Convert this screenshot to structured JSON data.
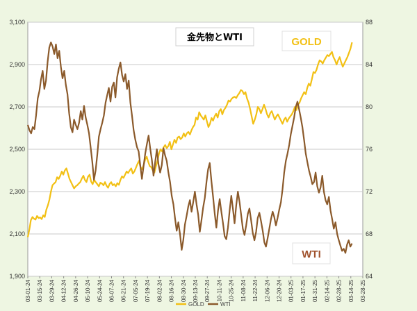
{
  "chart_data": {
    "type": "line",
    "title": "金先物とWTI",
    "colors": {
      "gold": "#f2c014",
      "wti": "#8b5a2b",
      "plot_bg": "#ffffff",
      "grid": "#c8c8c8"
    },
    "y_left": {
      "min": 1900,
      "max": 3100,
      "ticks": [
        1900,
        2100,
        2300,
        2500,
        2700,
        2900,
        3100
      ],
      "tick_labels": [
        "1,900",
        "2,100",
        "2,300",
        "2,500",
        "2,700",
        "2,900",
        "3,100"
      ]
    },
    "y_right": {
      "min": 64,
      "max": 88,
      "ticks": [
        64,
        68,
        72,
        76,
        80,
        84,
        88
      ],
      "tick_labels": [
        "64",
        "68",
        "72",
        "76",
        "80",
        "84",
        "88"
      ]
    },
    "x_labels": [
      "03-01-24",
      "03-15-24",
      "03-29-24",
      "04-12-24",
      "04-26-24",
      "05-10-24",
      "05-24-24",
      "06-07-24",
      "06-21-24",
      "07-05-24",
      "07-19-24",
      "08-02-24",
      "08-16-24",
      "08-30-24",
      "09-13-24",
      "09-27-24",
      "10-11-24",
      "10-25-24",
      "11-08-24",
      "11-22-24",
      "12-06-24",
      "12-20-24",
      "01-03-25",
      "01-17-25",
      "01-31-25",
      "02-14-25",
      "02-28-25",
      "03-14-25",
      "03-28-25"
    ],
    "legend": [
      "GOLD",
      "WTI"
    ],
    "annotations": {
      "gold": "GOLD",
      "wti": "WTI"
    },
    "series": [
      {
        "name": "GOLD",
        "axis": "left",
        "values": [
          2085,
          2120,
          2165,
          2180,
          2172,
          2168,
          2185,
          2175,
          2178,
          2170,
          2188,
          2180,
          2215,
          2235,
          2262,
          2300,
          2330,
          2338,
          2345,
          2368,
          2360,
          2375,
          2395,
          2380,
          2400,
          2410,
          2385,
          2360,
          2345,
          2330,
          2315,
          2325,
          2330,
          2338,
          2345,
          2362,
          2375,
          2355,
          2345,
          2370,
          2380,
          2348,
          2335,
          2355,
          2345,
          2335,
          2325,
          2342,
          2338,
          2330,
          2345,
          2328,
          2318,
          2336,
          2345,
          2330,
          2335,
          2325,
          2340,
          2332,
          2355,
          2372,
          2365,
          2380,
          2395,
          2388,
          2400,
          2410,
          2385,
          2395,
          2412,
          2430,
          2445,
          2415,
          2405,
          2425,
          2450,
          2465,
          2440,
          2420,
          2415,
          2400,
          2390,
          2420,
          2445,
          2480,
          2500,
          2490,
          2510,
          2520,
          2505,
          2515,
          2535,
          2500,
          2522,
          2545,
          2530,
          2555,
          2560,
          2548,
          2555,
          2575,
          2560,
          2575,
          2582,
          2570,
          2590,
          2605,
          2615,
          2650,
          2640,
          2675,
          2660,
          2650,
          2640,
          2660,
          2632,
          2605,
          2620,
          2648,
          2635,
          2655,
          2668,
          2650,
          2680,
          2690,
          2665,
          2685,
          2695,
          2710,
          2730,
          2725,
          2738,
          2745,
          2748,
          2742,
          2755,
          2765,
          2780,
          2775,
          2760,
          2770,
          2740,
          2720,
          2690,
          2655,
          2620,
          2640,
          2665,
          2700,
          2690,
          2670,
          2690,
          2710,
          2690,
          2665,
          2650,
          2670,
          2680,
          2660,
          2640,
          2655,
          2665,
          2650,
          2635,
          2620,
          2640,
          2650,
          2630,
          2645,
          2655,
          2665,
          2680,
          2700,
          2685,
          2710,
          2720,
          2740,
          2755,
          2770,
          2760,
          2790,
          2810,
          2800,
          2830,
          2865,
          2860,
          2875,
          2900,
          2920,
          2915,
          2905,
          2920,
          2932,
          2945,
          2940,
          2950,
          2960,
          2935,
          2920,
          2900,
          2920,
          2935,
          2910,
          2890,
          2905,
          2920,
          2935,
          2955,
          2975,
          3005
        ]
      },
      {
        "name": "WTI",
        "axis": "right",
        "values": [
          78.3,
          77.8,
          77.5,
          78.1,
          77.9,
          79.2,
          80.8,
          81.5,
          82.6,
          83.4,
          81.7,
          82.5,
          84.3,
          85.6,
          86.1,
          85.7,
          85.0,
          85.9,
          84.6,
          85.3,
          83.8,
          82.7,
          83.4,
          82.1,
          81.2,
          79.4,
          78.1,
          77.6,
          78.8,
          78.3,
          77.9,
          78.5,
          79.6,
          78.8,
          80.1,
          79.0,
          78.3,
          77.5,
          76.2,
          74.8,
          73.1,
          74.0,
          75.5,
          77.2,
          77.9,
          78.5,
          79.2,
          80.4,
          81.1,
          81.8,
          80.5,
          81.9,
          82.3,
          80.9,
          82.8,
          83.6,
          84.2,
          83.0,
          82.4,
          83.1,
          81.7,
          82.5,
          80.4,
          79.2,
          77.8,
          76.9,
          76.2,
          75.8,
          74.5,
          73.2,
          74.4,
          75.6,
          76.5,
          77.3,
          76.1,
          75.0,
          73.5,
          74.8,
          76.0,
          74.6,
          73.8,
          74.5,
          76.1,
          75.4,
          74.9,
          73.8,
          72.9,
          71.6,
          70.8,
          69.5,
          68.3,
          69.1,
          68.0,
          66.5,
          67.4,
          68.9,
          69.7,
          70.6,
          71.2,
          70.1,
          71.0,
          72.0,
          70.8,
          69.8,
          68.2,
          69.3,
          70.5,
          71.4,
          72.9,
          74.1,
          74.7,
          73.0,
          71.5,
          69.9,
          68.6,
          70.2,
          71.3,
          70.1,
          69.0,
          67.8,
          67.5,
          68.6,
          70.2,
          71.6,
          70.4,
          69.0,
          70.7,
          72.0,
          71.0,
          69.8,
          68.5,
          67.9,
          68.8,
          69.9,
          70.4,
          69.3,
          68.1,
          67.4,
          68.2,
          69.5,
          70.0,
          69.2,
          68.3,
          67.2,
          66.8,
          67.6,
          68.5,
          69.4,
          70.1,
          69.6,
          68.8,
          69.5,
          70.3,
          71.0,
          72.2,
          73.8,
          74.9,
          75.6,
          76.4,
          77.4,
          78.2,
          79.0,
          80.0,
          80.5,
          79.8,
          79.0,
          78.1,
          76.9,
          75.6,
          74.8,
          74.0,
          73.4,
          72.7,
          72.9,
          73.8,
          72.5,
          71.9,
          72.4,
          73.5,
          72.0,
          71.2,
          70.8,
          71.5,
          70.2,
          69.4,
          68.5,
          69.1,
          68.0,
          67.4,
          66.9,
          66.4,
          66.6,
          66.2,
          67.0,
          67.4,
          66.8,
          67.1
        ]
      }
    ]
  }
}
